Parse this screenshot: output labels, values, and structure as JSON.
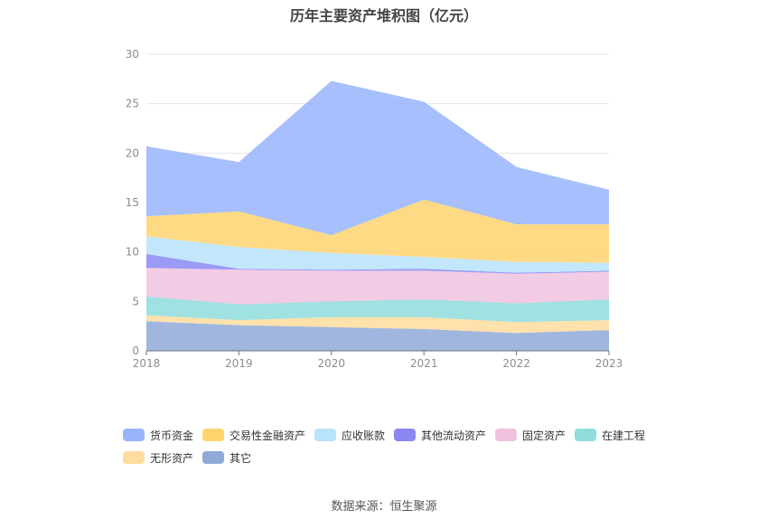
{
  "source_note": "数据来源：恒生聚源",
  "chart_data": {
    "type": "area",
    "stacked": true,
    "title": "历年主要资产堆积图（亿元）",
    "x": [
      "2018",
      "2019",
      "2020",
      "2021",
      "2022",
      "2023"
    ],
    "ylim": [
      0,
      30
    ],
    "yticks": [
      "0",
      "5",
      "10",
      "15",
      "20",
      "25",
      "30"
    ],
    "grid": true,
    "legend_position": "bottom",
    "series": [
      {
        "name": "其它",
        "color": "#8fa9d8",
        "values": [
          3.0,
          2.6,
          2.4,
          2.2,
          1.8,
          2.1
        ]
      },
      {
        "name": "无形资产",
        "color": "#ffdc9e",
        "values": [
          0.6,
          0.5,
          1.0,
          1.2,
          1.1,
          1.0
        ]
      },
      {
        "name": "在建工程",
        "color": "#8fdcdc",
        "values": [
          1.9,
          1.6,
          1.6,
          1.8,
          1.9,
          2.1
        ]
      },
      {
        "name": "固定资产",
        "color": "#f0c2e0",
        "values": [
          2.9,
          3.5,
          3.1,
          2.9,
          3.0,
          2.8
        ]
      },
      {
        "name": "其他流动资产",
        "color": "#8a88f2",
        "values": [
          1.4,
          0.1,
          0.1,
          0.2,
          0.1,
          0.1
        ]
      },
      {
        "name": "应收账款",
        "color": "#b7e3fb",
        "values": [
          1.8,
          2.2,
          1.7,
          1.2,
          1.1,
          0.8
        ]
      },
      {
        "name": "交易性金融资产",
        "color": "#ffd46e",
        "values": [
          2.0,
          3.6,
          1.8,
          5.8,
          3.8,
          3.9
        ]
      },
      {
        "name": "货币资金",
        "color": "#98b4fb",
        "values": [
          7.1,
          5.0,
          15.6,
          9.9,
          5.8,
          3.5
        ]
      }
    ],
    "legend_order": [
      "货币资金",
      "交易性金融资产",
      "应收账款",
      "其他流动资产",
      "固定资产",
      "在建工程",
      "无形资产",
      "其它"
    ]
  }
}
